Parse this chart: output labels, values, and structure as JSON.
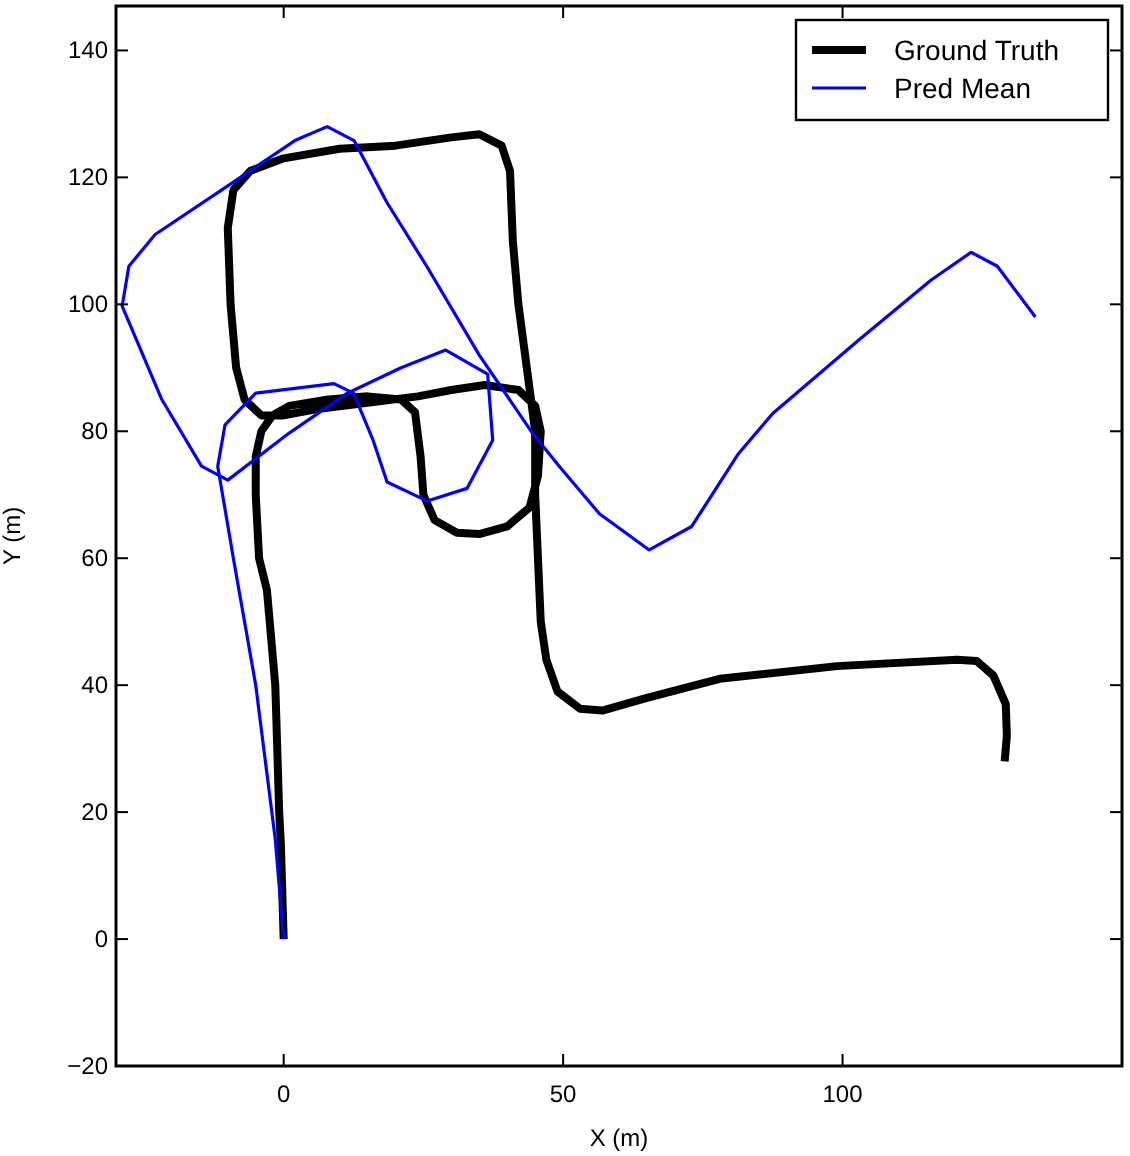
{
  "chart_data": {
    "type": "line",
    "xlabel": "X (m)",
    "ylabel": "Y (m)",
    "xlim": [
      -30,
      150
    ],
    "ylim": [
      -20,
      147
    ],
    "xticks": [
      0,
      50,
      100
    ],
    "yticks": [
      -20,
      0,
      20,
      40,
      60,
      80,
      100,
      120,
      140
    ],
    "grid": false,
    "legend": "top right",
    "marker": "none",
    "line_style": "solid",
    "series": [
      {
        "name": "Ground Truth",
        "color": "#000000",
        "x": [
          0,
          -0.5,
          -0.8,
          -1.5,
          -3,
          -4.4,
          -5,
          -5,
          -4,
          -2,
          1,
          8,
          15,
          21,
          23.5,
          24.5,
          25,
          27,
          31,
          35,
          40,
          44,
          45.5,
          46,
          45,
          42,
          36,
          30,
          24,
          15,
          6,
          0,
          -4,
          -7,
          -8.5,
          -9.5,
          -10,
          -9,
          -6,
          0,
          10,
          20,
          30,
          35,
          39,
          40.5,
          41,
          42,
          43.5,
          45,
          45,
          45.5,
          46,
          47,
          49,
          53,
          57,
          65,
          78,
          99,
          120.5,
          124,
          127,
          129.2,
          129.4,
          129
        ],
        "values": [
          0,
          15,
          20,
          40,
          55,
          60,
          70,
          76,
          80,
          82.5,
          84,
          85,
          85.5,
          85,
          83,
          76,
          70,
          66,
          64,
          63.8,
          65,
          68,
          73,
          80,
          84,
          86.5,
          87.3,
          86.5,
          85.5,
          84.5,
          83.5,
          82.5,
          82.5,
          85,
          90,
          100,
          112,
          118,
          121,
          123,
          124.5,
          125,
          126.3,
          126.8,
          125,
          121,
          110,
          100,
          90,
          80,
          70,
          60,
          50,
          44,
          39,
          36.3,
          36,
          38,
          41,
          43,
          44,
          43.8,
          41.5,
          37,
          32,
          28
        ]
      },
      {
        "name": "Pred Mean",
        "color": "#0000ff",
        "x": [
          0,
          -1.5,
          -5,
          -9,
          -11.8,
          -10.5,
          -5,
          9,
          12.5,
          16,
          18.5,
          25.7,
          32.8,
          37.4,
          36.5,
          29,
          21,
          11.4,
          0.8,
          -10,
          -14.7,
          -21.8,
          -28.9,
          -27.7,
          -23,
          -8.6,
          2,
          7.8,
          12.6,
          18.5,
          25.6,
          35,
          44.6,
          49.3,
          56.5,
          65.4,
          73,
          81.4,
          87.5,
          102.8,
          115.8,
          123,
          127.7,
          134.5
        ],
        "values": [
          0,
          15.7,
          40,
          60,
          74.5,
          81,
          86,
          87.5,
          86,
          78.6,
          72,
          69,
          71,
          78.6,
          89,
          92.8,
          90,
          86,
          79.6,
          72.3,
          74.5,
          85,
          99.7,
          106,
          111,
          119.5,
          125.8,
          128,
          125.8,
          116,
          106,
          92,
          79.6,
          74.5,
          67,
          61.3,
          65,
          76.5,
          82.8,
          94.3,
          103.8,
          108.2,
          106,
          98
        ]
      }
    ]
  }
}
